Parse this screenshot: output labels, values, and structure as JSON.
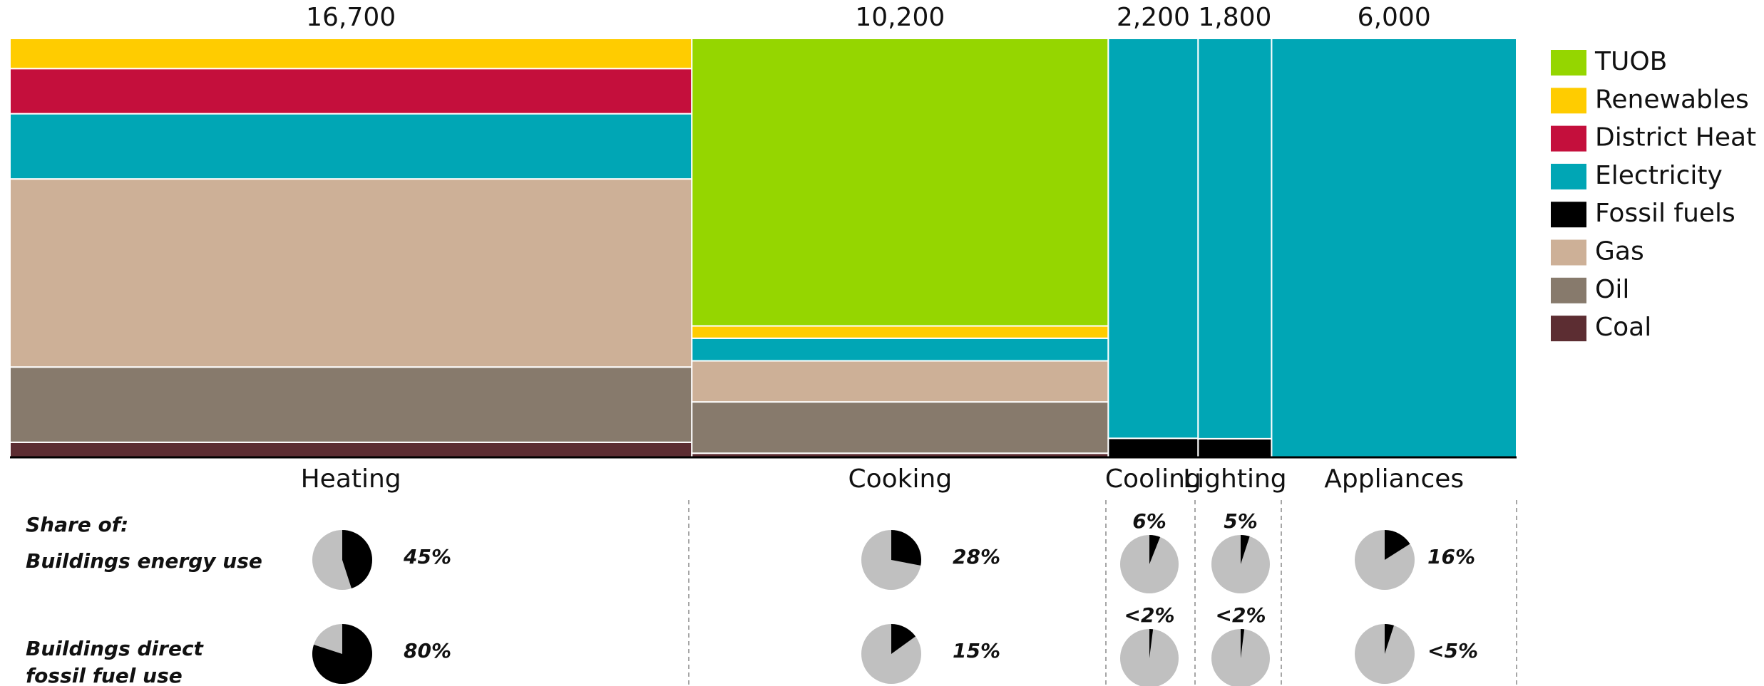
{
  "chart_data": [
    {
      "type": "mekko",
      "categories": [
        "Heating",
        "Cooking",
        "Cooling",
        "Lighting",
        "Appliances"
      ],
      "totals": [
        16700,
        10200,
        2200,
        1800,
        6000
      ],
      "totals_labels": [
        "16,700",
        "10,200",
        "2,200",
        "1,800",
        "6,000"
      ],
      "series": [
        {
          "name": "TUOB",
          "color": "#95d600",
          "values": [
            null,
            7000,
            null,
            null,
            null
          ]
        },
        {
          "name": "Renewables",
          "color": "#ffcc00",
          "values": [
            1200,
            300,
            null,
            null,
            null
          ]
        },
        {
          "name": "District Heat",
          "color": "#c40f3c",
          "values": [
            1800,
            null,
            null,
            null,
            null
          ]
        },
        {
          "name": "Electricity",
          "color": "#00a6b5",
          "values": [
            2600,
            550,
            2100,
            1720,
            6000
          ]
        },
        {
          "name": "Fossil fuels",
          "color": "#000000",
          "values": [
            null,
            null,
            100,
            80,
            null
          ]
        },
        {
          "name": "Gas",
          "color": "#cdb097",
          "values": [
            7500,
            1000,
            null,
            null,
            null
          ]
        },
        {
          "name": "Oil",
          "color": "#877a6c",
          "values": [
            3000,
            1250,
            null,
            null,
            null
          ]
        },
        {
          "name": "Coal",
          "color": "#5c2d32",
          "values": [
            600,
            100,
            null,
            null,
            null
          ]
        }
      ]
    },
    {
      "type": "pie-grid",
      "heading": "Share of:",
      "rows": [
        {
          "label": [
            "Buildings energy use"
          ],
          "values": [
            45,
            28,
            6,
            5,
            16
          ],
          "value_labels": [
            "45%",
            "28%",
            "6%",
            "5%",
            "16%"
          ]
        },
        {
          "label": [
            "Buildings direct",
            "fossil fuel use"
          ],
          "values": [
            80,
            15,
            2,
            2,
            5
          ],
          "value_labels": [
            "80%",
            "15%",
            "<2%",
            "<2%",
            "<5%"
          ]
        }
      ]
    }
  ]
}
